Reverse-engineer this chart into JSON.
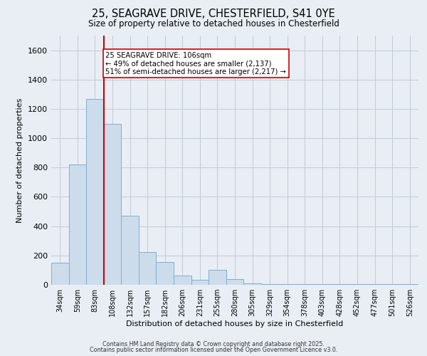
{
  "title_line1": "25, SEAGRAVE DRIVE, CHESTERFIELD, S41 0YE",
  "title_line2": "Size of property relative to detached houses in Chesterfield",
  "xlabel": "Distribution of detached houses by size in Chesterfield",
  "ylabel": "Number of detached properties",
  "categories": [
    "34sqm",
    "59sqm",
    "83sqm",
    "108sqm",
    "132sqm",
    "157sqm",
    "182sqm",
    "206sqm",
    "231sqm",
    "255sqm",
    "280sqm",
    "305sqm",
    "329sqm",
    "354sqm",
    "378sqm",
    "403sqm",
    "428sqm",
    "452sqm",
    "477sqm",
    "501sqm",
    "526sqm"
  ],
  "values": [
    150,
    820,
    1270,
    1100,
    470,
    225,
    155,
    65,
    35,
    100,
    40,
    10,
    5,
    3,
    3,
    3,
    3,
    3,
    3,
    3,
    3
  ],
  "bar_color": "#cddceb",
  "bar_edge_color": "#7bafd4",
  "grid_color": "#c5cdd8",
  "background_color": "#e8eef4",
  "vline_color": "#cc0000",
  "vline_x": 2.5,
  "annotation_text": "25 SEAGRAVE DRIVE: 106sqm\n← 49% of detached houses are smaller (2,137)\n51% of semi-detached houses are larger (2,217) →",
  "annotation_box_facecolor": "#ffffff",
  "annotation_box_edgecolor": "#cc0000",
  "ylim": [
    0,
    1700
  ],
  "yticks": [
    0,
    200,
    400,
    600,
    800,
    1000,
    1200,
    1400,
    1600
  ],
  "footer_line1": "Contains HM Land Registry data © Crown copyright and database right 2025.",
  "footer_line2": "Contains public sector information licensed under the Open Government Licence v3.0."
}
